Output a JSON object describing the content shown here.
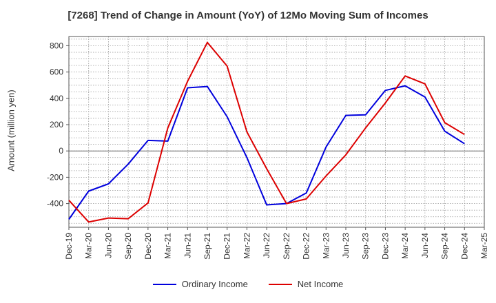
{
  "chart_data": {
    "type": "line",
    "title": "[7268]  Trend of Change in Amount (YoY) of 12Mo Moving Sum of Incomes",
    "ylabel": "Amount (million yen)",
    "xlabel": "",
    "ylim": [
      -580,
      870
    ],
    "yticks": [
      -400,
      -200,
      0,
      200,
      400,
      600,
      800
    ],
    "grid": true,
    "legend": "bottom-center",
    "categories": [
      "Dec-19",
      "Mar-20",
      "Jun-20",
      "Sep-20",
      "Dec-20",
      "Mar-21",
      "Jun-21",
      "Sep-21",
      "Dec-21",
      "Mar-22",
      "Jun-22",
      "Sep-22",
      "Dec-22",
      "Mar-23",
      "Jun-23",
      "Sep-23",
      "Dec-23",
      "Mar-24",
      "Jun-24",
      "Sep-24",
      "Dec-24",
      "Mar-25"
    ],
    "series": [
      {
        "name": "Ordinary Income",
        "color": "#0000dd",
        "values": [
          -520,
          -305,
          -250,
          -100,
          80,
          75,
          480,
          490,
          260,
          -50,
          -410,
          -400,
          -320,
          30,
          270,
          275,
          460,
          495,
          410,
          150,
          55,
          null
        ]
      },
      {
        "name": "Net Income",
        "color": "#dd0000",
        "values": [
          -375,
          -540,
          -510,
          -515,
          -395,
          175,
          530,
          825,
          645,
          145,
          -135,
          -400,
          -365,
          -190,
          -30,
          175,
          365,
          570,
          510,
          215,
          125,
          null
        ]
      }
    ]
  }
}
